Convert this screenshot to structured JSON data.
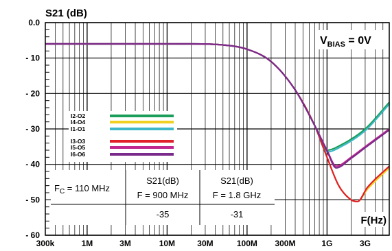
{
  "chart_data": {
    "type": "line",
    "title": "",
    "ylabel": "S21 (dB)",
    "xlabel": "F(Hz)",
    "annotation": "V",
    "annotation_sub": "BIAS",
    "annotation_tail": " = 0V",
    "x_scale": "log",
    "xlim": [
      300000,
      6000000000
    ],
    "ylim": [
      -60,
      0
    ],
    "grid": true,
    "x_ticks": [
      {
        "value": 300000,
        "label": "300k"
      },
      {
        "value": 1000000,
        "label": "1M"
      },
      {
        "value": 3000000,
        "label": "3M"
      },
      {
        "value": 10000000,
        "label": "10M"
      },
      {
        "value": 30000000,
        "label": "30M"
      },
      {
        "value": 100000000,
        "label": "100M"
      },
      {
        "value": 300000000,
        "label": "300M"
      },
      {
        "value": 1000000000,
        "label": "1G"
      },
      {
        "value": 3000000000,
        "label": "3G"
      }
    ],
    "y_ticks": [
      {
        "value": 0,
        "label": "0.0"
      },
      {
        "value": -10,
        "label": "- 10"
      },
      {
        "value": -20,
        "label": "- 20"
      },
      {
        "value": -30,
        "label": "- 30"
      },
      {
        "value": -40,
        "label": "- 40"
      },
      {
        "value": -50,
        "label": "- 50"
      },
      {
        "value": -60,
        "label": "- 60"
      }
    ],
    "legend_placement": "left",
    "series": [
      {
        "name": "I2-O2",
        "color": "#1a9e5a",
        "x": [
          300000,
          20000000,
          50000000,
          100000000,
          200000000,
          400000000,
          700000000,
          1000000000,
          1500000000,
          3000000000,
          6000000000
        ],
        "values": [
          -6,
          -6,
          -6.3,
          -7.5,
          -11,
          -19,
          -29,
          -36,
          -34.5,
          -30,
          -22.5
        ]
      },
      {
        "name": "I4-O4",
        "color": "#f0d020",
        "x": [
          300000,
          20000000,
          50000000,
          100000000,
          200000000,
          400000000,
          700000000,
          1000000000,
          1400000000,
          2000000000,
          2400000000,
          3200000000,
          6000000000
        ],
        "values": [
          -6,
          -6,
          -6.3,
          -7.5,
          -11,
          -19,
          -29,
          -38,
          -46,
          -50,
          -50.5,
          -47,
          -41
        ]
      },
      {
        "name": "I1-O1",
        "color": "#3cb8c8",
        "x": [
          300000,
          20000000,
          50000000,
          100000000,
          200000000,
          400000000,
          700000000,
          1000000000,
          1500000000,
          3000000000,
          6000000000
        ],
        "values": [
          -6,
          -6,
          -6.3,
          -7.5,
          -11,
          -19,
          -29,
          -36.5,
          -35,
          -30.5,
          -23
        ]
      },
      {
        "name": "I3-O3",
        "color": "#e0202a",
        "x": [
          300000,
          20000000,
          50000000,
          100000000,
          200000000,
          400000000,
          700000000,
          1000000000,
          1400000000,
          2000000000,
          2400000000,
          3200000000,
          6000000000
        ],
        "values": [
          -6,
          -6,
          -6.3,
          -7.5,
          -11,
          -19,
          -29,
          -38,
          -46,
          -50,
          -50.5,
          -46.5,
          -40.5
        ]
      },
      {
        "name": "I5-O5",
        "color": "#c02890",
        "x": [
          300000,
          20000000,
          50000000,
          100000000,
          200000000,
          400000000,
          700000000,
          1000000000,
          1300000000,
          2000000000,
          3000000000,
          6000000000
        ],
        "values": [
          -6,
          -6,
          -6.3,
          -7.5,
          -11,
          -19,
          -29,
          -36,
          -40.5,
          -38,
          -35,
          -30
        ]
      },
      {
        "name": "I6-O6",
        "color": "#7a2a8a",
        "x": [
          300000,
          20000000,
          50000000,
          100000000,
          200000000,
          400000000,
          700000000,
          1000000000,
          1300000000,
          2000000000,
          3000000000,
          6000000000
        ],
        "values": [
          -6,
          -6,
          -6.3,
          -7.5,
          -11,
          -19,
          -29,
          -36.2,
          -41,
          -38.3,
          -35.3,
          -30.3
        ]
      }
    ],
    "table": {
      "fc_label": "F",
      "fc_sub": "C",
      "fc_value": " = 110 MHz",
      "col1_line1": "S21(dB)",
      "col1_line2": "F = 900 MHz",
      "col2_line1": "S21(dB)",
      "col2_line2": "F = 1.8 GHz",
      "row_label": "",
      "col1_value": "-35",
      "col2_value": "-31"
    }
  }
}
